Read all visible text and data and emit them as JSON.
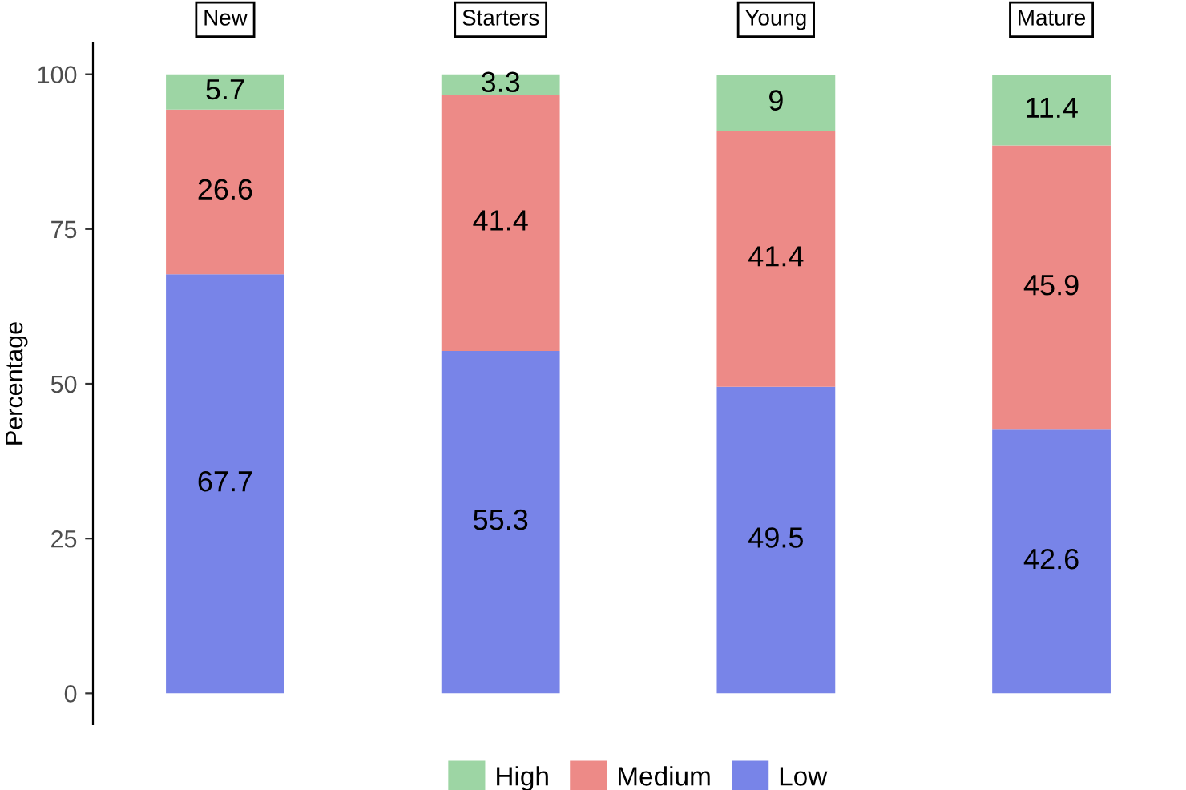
{
  "chart_data": {
    "type": "bar",
    "stacked": true,
    "ylabel": "Percentage",
    "categories": [
      "New",
      "Starters",
      "Young",
      "Mature"
    ],
    "series": [
      {
        "name": "Low",
        "color": "#7884e8",
        "values": [
          67.7,
          55.3,
          49.5,
          42.6
        ]
      },
      {
        "name": "Medium",
        "color": "#ed8a87",
        "values": [
          26.6,
          41.4,
          41.4,
          45.9
        ]
      },
      {
        "name": "High",
        "color": "#9dd5a4",
        "values": [
          5.7,
          3.3,
          9,
          11.4
        ]
      }
    ],
    "ylim": [
      -5,
      105
    ],
    "yticks": [
      0,
      25,
      50,
      75,
      100
    ],
    "grid": false,
    "legend": "bottom",
    "data_labels": true
  }
}
